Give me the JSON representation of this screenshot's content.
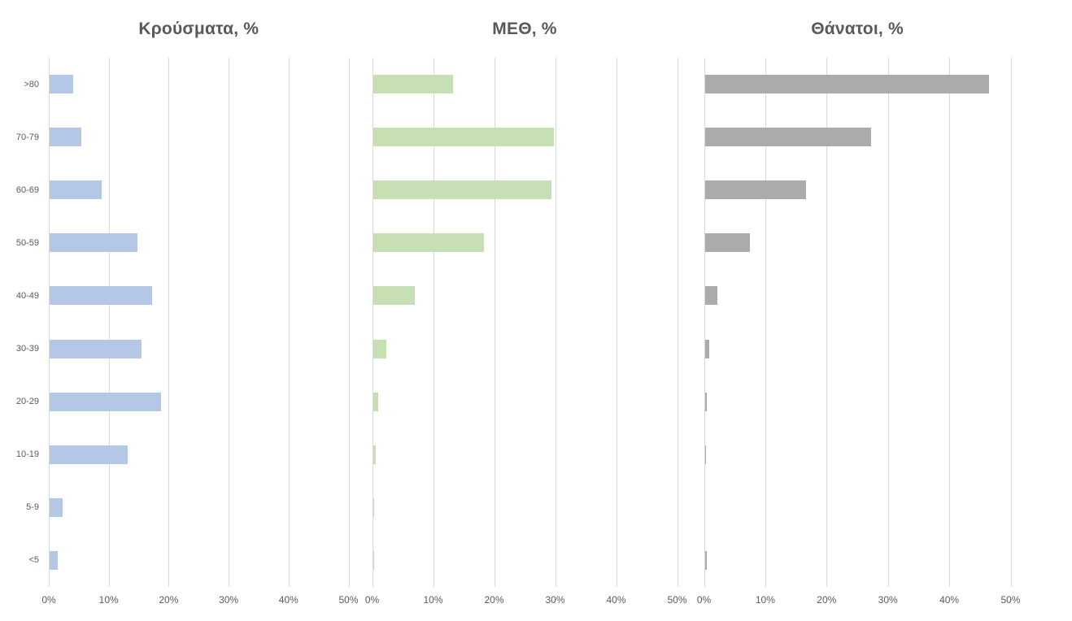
{
  "categories": [
    ">80",
    "70-79",
    "60-69",
    "50-59",
    "40-49",
    "30-39",
    "20-29",
    "10-19",
    "5-9",
    "<5"
  ],
  "x_tick_labels": [
    "0%",
    "10%",
    "20%",
    "30%",
    "40%",
    "50%"
  ],
  "styles": {
    "background": "#ffffff",
    "gridline_color": "#d9d9d9",
    "text_color": "#595959",
    "cases_bar_color": "#b4c7e7",
    "icu_bar_color": "#c6e0b4",
    "deaths_bar_color": "#ababab"
  },
  "chart_data": [
    {
      "type": "bar",
      "orientation": "horizontal",
      "title": "Κρούσματα, %",
      "categories": [
        ">80",
        "70-79",
        "60-69",
        "50-59",
        "40-49",
        "30-39",
        "20-29",
        "10-19",
        "5-9",
        "<5"
      ],
      "values": [
        4.0,
        5.3,
        8.7,
        14.7,
        17.1,
        15.4,
        18.6,
        13.0,
        2.2,
        1.4
      ],
      "color": "#b4c7e7",
      "xlabel": "",
      "ylabel": "",
      "xlim": [
        0,
        50
      ],
      "x_ticks_pct": [
        0,
        10,
        20,
        30,
        40,
        50
      ],
      "grid": true,
      "legend": false
    },
    {
      "type": "bar",
      "orientation": "horizontal",
      "title": "ΜΕΘ, %",
      "categories": [
        ">80",
        "70-79",
        "60-69",
        "50-59",
        "40-49",
        "30-39",
        "20-29",
        "10-19",
        "5-9",
        "<5"
      ],
      "values": [
        13.1,
        29.6,
        29.3,
        18.2,
        6.8,
        2.2,
        0.8,
        0.4,
        0.15,
        0.15
      ],
      "color": "#c6e0b4",
      "xlabel": "",
      "ylabel": "",
      "xlim": [
        0,
        50
      ],
      "x_ticks_pct": [
        0,
        10,
        20,
        30,
        40,
        50
      ],
      "grid": true,
      "legend": false
    },
    {
      "type": "bar",
      "orientation": "horizontal",
      "title": "Θάνατοι, %",
      "categories": [
        ">80",
        "70-79",
        "60-69",
        "50-59",
        "40-49",
        "30-39",
        "20-29",
        "10-19",
        "5-9",
        "<5"
      ],
      "values": [
        46.4,
        27.1,
        16.5,
        7.4,
        2.0,
        0.7,
        0.35,
        0.25,
        0,
        0.3
      ],
      "color": "#ababab",
      "xlabel": "",
      "ylabel": "",
      "xlim": [
        0,
        50
      ],
      "x_ticks_pct": [
        0,
        10,
        20,
        30,
        40,
        50
      ],
      "grid": true,
      "legend": false
    }
  ]
}
